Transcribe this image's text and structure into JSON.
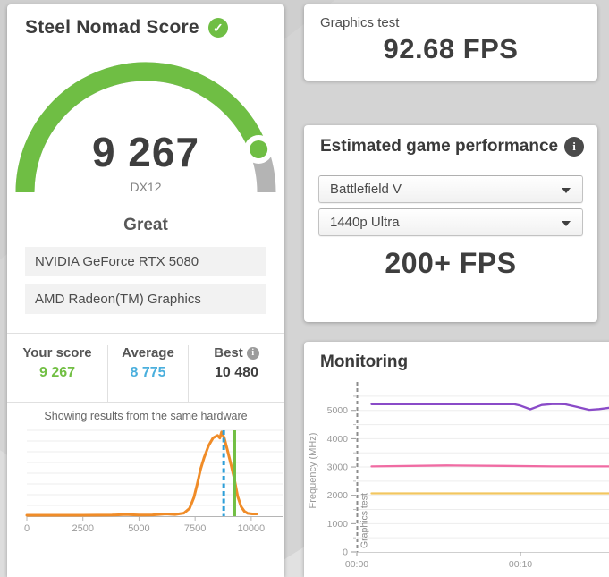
{
  "left_panel": {
    "title": "Steel Nomad Score",
    "verified_icon": "check-circle",
    "score": "9 267",
    "api": "DX12",
    "rating": "Great",
    "hardware": [
      "NVIDIA GeForce RTX 5080",
      "AMD Radeon(TM) Graphics"
    ],
    "comparison": {
      "your_score_label": "Your score",
      "your_score_value": "9 267",
      "your_score_color": "#72bf44",
      "average_label": "Average",
      "average_value": "8 775",
      "average_color": "#4aafdd",
      "best_label": "Best",
      "best_value": "10 480",
      "best_color": "#3f3f3f"
    },
    "histogram_title": "Showing results from the same hardware"
  },
  "graphics_test": {
    "label": "Graphics test",
    "value": "92.68 FPS"
  },
  "game_performance": {
    "title": "Estimated game performance",
    "game_selected": "Battlefield V",
    "preset_selected": "1440p Ultra",
    "fps": "200+ FPS"
  },
  "monitoring": {
    "title": "Monitoring"
  },
  "colors": {
    "accent_green": "#6fbe44",
    "gauge_gray": "#b4b4b4",
    "histogram_orange": "#f08c28"
  },
  "chart_data": [
    {
      "type": "gauge",
      "value": 9267,
      "max": 10480,
      "label": "DX12",
      "arc_color": "#6fbe44",
      "track_color": "#b4b4b4"
    },
    {
      "type": "area",
      "title": "Showing results from the same hardware",
      "xlim": [
        0,
        11400
      ],
      "xticks": [
        0,
        2500,
        5000,
        7500,
        10000
      ],
      "curve_color": "#f08c28",
      "points": [
        [
          0,
          1
        ],
        [
          1500,
          1
        ],
        [
          2500,
          1
        ],
        [
          3800,
          1.3
        ],
        [
          4400,
          2
        ],
        [
          5000,
          1.4
        ],
        [
          5600,
          1.5
        ],
        [
          6200,
          2.6
        ],
        [
          6600,
          2
        ],
        [
          7000,
          3.5
        ],
        [
          7250,
          9
        ],
        [
          7450,
          22
        ],
        [
          7600,
          38
        ],
        [
          7750,
          55
        ],
        [
          7900,
          68
        ],
        [
          8100,
          82
        ],
        [
          8300,
          91
        ],
        [
          8500,
          94
        ],
        [
          8600,
          91
        ],
        [
          8680,
          98
        ],
        [
          8800,
          91
        ],
        [
          8950,
          76
        ],
        [
          9100,
          60
        ],
        [
          9250,
          43
        ],
        [
          9400,
          23
        ],
        [
          9550,
          11
        ],
        [
          9700,
          5.5
        ],
        [
          9850,
          3.2
        ],
        [
          10050,
          2.6
        ],
        [
          10250,
          2.6
        ]
      ],
      "average_line": {
        "value": 8775,
        "color": "#2d9fd8",
        "style": "dashed"
      },
      "score_line": {
        "value": 9267,
        "color": "#72bf44",
        "style": "solid"
      }
    },
    {
      "type": "line",
      "title": "Monitoring",
      "ylabel": "Frequency (MHz)",
      "ylim": [
        0,
        5750
      ],
      "yticks": [
        0,
        1000,
        2000,
        3000,
        4000,
        5000
      ],
      "minor_step": 500,
      "x_seconds_max": 15.5,
      "xticks": [
        {
          "t": 0,
          "label": "00:00"
        },
        {
          "t": 10,
          "label": "00:10"
        }
      ],
      "annotation": {
        "label": "Graphics test",
        "t": 0
      },
      "series": [
        {
          "color": "#8a4bc8",
          "points": [
            [
              0.9,
              5220
            ],
            [
              5,
              5220
            ],
            [
              9.6,
              5220
            ],
            [
              10.0,
              5170
            ],
            [
              10.6,
              5040
            ],
            [
              11.3,
              5190
            ],
            [
              12.0,
              5225
            ],
            [
              12.7,
              5220
            ],
            [
              13.4,
              5130
            ],
            [
              14.2,
              5020
            ],
            [
              14.8,
              5045
            ],
            [
              15.5,
              5095
            ]
          ]
        },
        {
          "color": "#f06ba3",
          "points": [
            [
              0.9,
              3020
            ],
            [
              5.5,
              3055
            ],
            [
              9.0,
              3040
            ],
            [
              12.0,
              3020
            ],
            [
              15.5,
              3020
            ]
          ]
        },
        {
          "color": "#f2c660",
          "points": [
            [
              0.9,
              2070
            ],
            [
              15.5,
              2070
            ]
          ]
        }
      ]
    }
  ]
}
